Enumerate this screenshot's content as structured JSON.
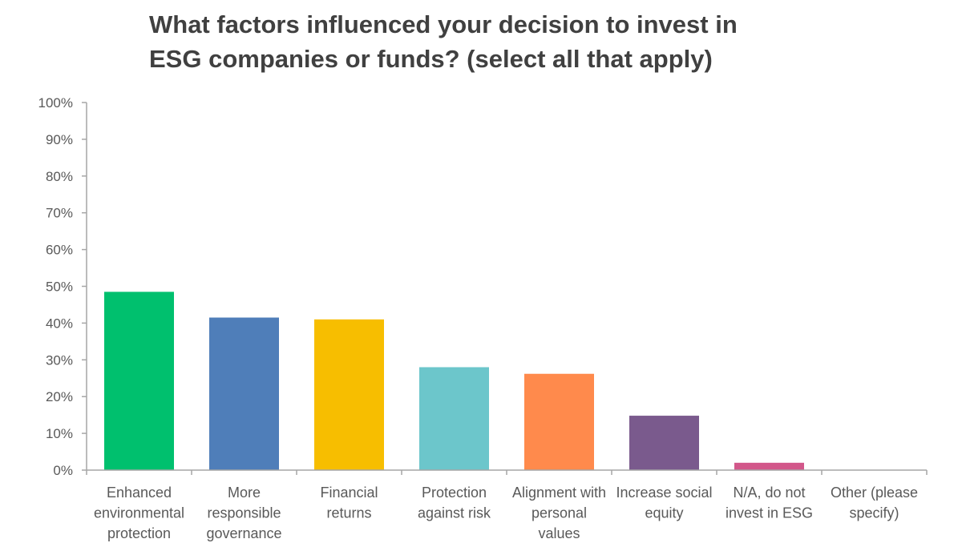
{
  "chart_data": {
    "type": "bar",
    "title_lines": [
      "What factors influenced your decision to invest in",
      "ESG companies or funds? (select all that apply)"
    ],
    "categories": [
      [
        "Enhanced",
        "environmental",
        "protection"
      ],
      [
        "More",
        "responsible",
        "governance"
      ],
      [
        "Financial",
        "returns"
      ],
      [
        "Protection",
        "against risk"
      ],
      [
        "Alignment with",
        "personal",
        "values"
      ],
      [
        "Increase social",
        "equity"
      ],
      [
        "N/A, do not",
        "invest in ESG"
      ],
      [
        "Other (please",
        "specify)"
      ]
    ],
    "values": [
      48.5,
      41.5,
      41,
      28,
      26.2,
      14.8,
      2,
      0
    ],
    "colors": [
      "#00C06E",
      "#4F7EB9",
      "#F7BE00",
      "#6CC6CB",
      "#FF8A4C",
      "#7A5A8D",
      "#D2578A",
      "#999999"
    ],
    "ylim": [
      0,
      100
    ],
    "yticks": [
      0,
      10,
      20,
      30,
      40,
      50,
      60,
      70,
      80,
      90,
      100
    ],
    "tick_suffix": "%",
    "axis_color": "#A6A6A6",
    "grid": false,
    "legend": "none"
  }
}
